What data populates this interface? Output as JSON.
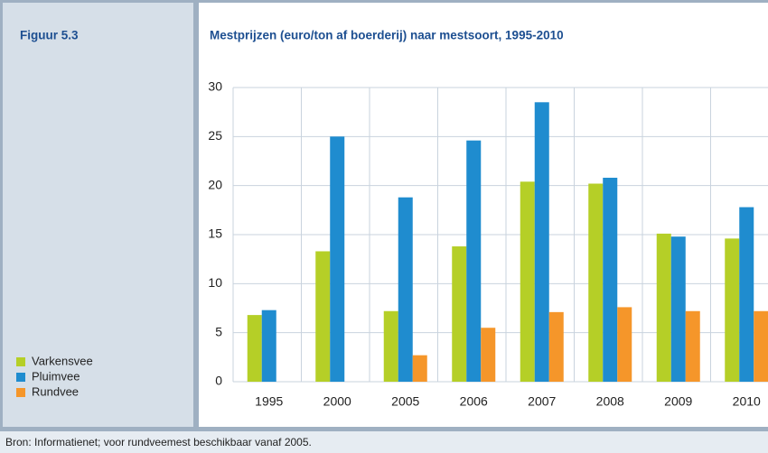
{
  "figure_label": "Figuur 5.3",
  "source": "Bron: Informatienet; voor rundveemest beschikbaar vanaf 2005.",
  "chart_data": {
    "type": "bar",
    "title": "Mestprijzen (euro/ton af boerderij) naar mestsoort, 1995-2010",
    "categories": [
      "1995",
      "2000",
      "2005",
      "2006",
      "2007",
      "2008",
      "2009",
      "2010"
    ],
    "series": [
      {
        "name": "Varkensvee",
        "color": "#b5cf27",
        "values": [
          6.8,
          13.3,
          7.2,
          13.8,
          20.4,
          20.2,
          15.1,
          14.6
        ]
      },
      {
        "name": "Pluimvee",
        "color": "#1f8ccf",
        "values": [
          7.3,
          25.0,
          18.8,
          24.6,
          28.5,
          20.8,
          14.8,
          17.8
        ]
      },
      {
        "name": "Rundvee",
        "color": "#f5962a",
        "values": [
          null,
          null,
          2.7,
          5.5,
          7.1,
          7.6,
          7.2,
          7.2
        ]
      }
    ],
    "ylim": [
      0,
      30
    ],
    "yticks": [
      0,
      5,
      10,
      15,
      20,
      25,
      30
    ],
    "grid": true,
    "legend": "bottom-left"
  }
}
